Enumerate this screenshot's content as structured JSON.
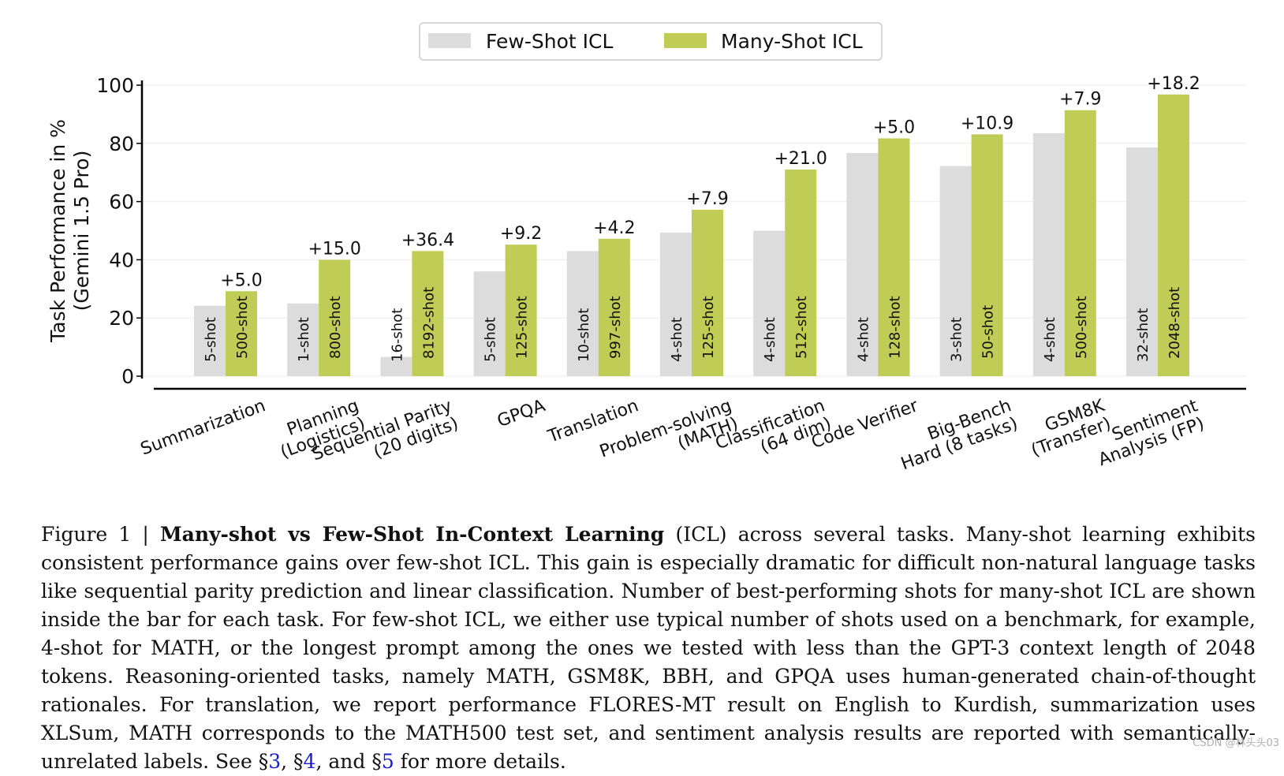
{
  "chart_data": {
    "type": "bar",
    "ylabel_line1": "Task Performance in %",
    "ylabel_line2": "(Gemini 1.5 Pro)",
    "ylim": [
      0,
      100
    ],
    "yticks": [
      "0",
      "20",
      "40",
      "60",
      "80",
      "100"
    ],
    "grid": true,
    "legend_position": "top-center",
    "colors": {
      "few_shot": "#dcdcdc",
      "many_shot": "#bfcc55"
    },
    "series": [
      {
        "name": "Few-Shot ICL",
        "values": [
          24.2,
          25,
          6.6,
          36,
          43,
          49.3,
          50,
          76.7,
          72.2,
          83.5,
          78.6
        ]
      },
      {
        "name": "Many-Shot ICL",
        "values": [
          29.2,
          40,
          43,
          45.2,
          47.2,
          57.2,
          71,
          81.7,
          83.1,
          91.4,
          96.8
        ]
      }
    ],
    "categories": [
      [
        "Summarization"
      ],
      [
        "Planning",
        "(Logistics)"
      ],
      [
        "Sequential Parity",
        "(20 digits)"
      ],
      [
        "GPQA"
      ],
      [
        "Translation"
      ],
      [
        "Problem-solving",
        "(MATH)"
      ],
      [
        "Classification",
        "(64 dim)"
      ],
      [
        "Code Verifier"
      ],
      [
        "Big-Bench",
        "Hard (8 tasks)"
      ],
      [
        "GSM8K",
        "(Transfer)"
      ],
      [
        "Sentiment",
        "Analysis (FP)"
      ]
    ],
    "few_shot_labels": [
      "5-shot",
      "1-shot",
      "16-shot",
      "5-shot",
      "10-shot",
      "4-shot",
      "4-shot",
      "4-shot",
      "3-shot",
      "4-shot",
      "32-shot"
    ],
    "many_shot_labels": [
      "500-shot",
      "800-shot",
      "8192-shot",
      "125-shot",
      "997-shot",
      "125-shot",
      "512-shot",
      "128-shot",
      "50-shot",
      "500-shot",
      "2048-shot"
    ],
    "gain_labels": [
      "+5.0",
      "+15.0",
      "+36.4",
      "+9.2",
      "+4.2",
      "+7.9",
      "+21.0",
      "+5.0",
      "+10.9",
      "+7.9",
      "+18.2"
    ]
  },
  "caption": {
    "prefix": "Figure 1 | ",
    "bold_title": "Many-shot vs Few-Shot In-Context Learning",
    "body": " (ICL) across several tasks. Many-shot learning exhibits consistent performance gains over few-shot ICL. This gain is especially dramatic for difficult non-natural language tasks like sequential parity prediction and linear classification. Number of best-performing shots for many-shot ICL are shown inside the bar for each task. For few-shot ICL, we either use typical number of shots used on a benchmark, for example, 4-shot for MATH, or the longest prompt among the ones we tested with less than the GPT-3 context length of 2048 tokens. Reasoning-oriented tasks, namely MATH, GSM8K, BBH, and GPQA uses human-generated chain-of-thought rationales. For translation, we report performance FLORES-MT result on English to Kurdish, summarization uses XLSum, MATH corresponds to the MATH500 test set, and sentiment analysis results are reported with semantically-unrelated labels. See ",
    "sec_sym_1": "§",
    "ref_1": "3",
    "sep_1": ", ",
    "sec_sym_2": "§",
    "ref_2": "4",
    "sep_2": ", and ",
    "sec_sym_3": "§",
    "ref_3": "5",
    "suffix": " for more details."
  },
  "watermark": "CSDN @林头头03"
}
